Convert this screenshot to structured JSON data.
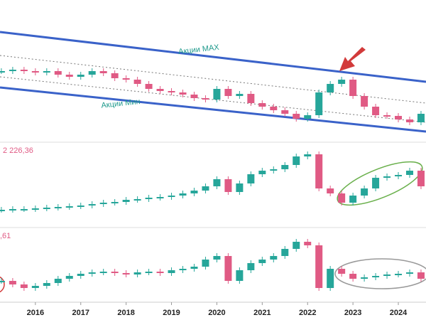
{
  "chart_data": [
    {
      "type": "candlestick",
      "annotations": [
        "Акции MAX",
        "Акции Мин"
      ],
      "x": [
        2015.25,
        2015.5,
        2015.75,
        2016,
        2016.25,
        2016.5,
        2016.75,
        2017,
        2017.25,
        2017.5,
        2017.75,
        2018,
        2018.25,
        2018.5,
        2018.75,
        2019,
        2019.25,
        2019.5,
        2019.75,
        2020,
        2020.25,
        2020.5,
        2020.75,
        2021,
        2021.25,
        2021.5,
        2021.75,
        2022,
        2022.25,
        2022.5,
        2022.75,
        2023,
        2023.25,
        2023.5,
        2023.75,
        2024,
        2024.25,
        2024.5
      ],
      "values": [
        100,
        102,
        100,
        98,
        100,
        95,
        92,
        95,
        100,
        97,
        90,
        88,
        82,
        75,
        72,
        70,
        67,
        62,
        60,
        75,
        65,
        68,
        55,
        50,
        45,
        40,
        33,
        38,
        70,
        82,
        88,
        65,
        50,
        38,
        37,
        32,
        28,
        40
      ],
      "ylim": [
        0,
        200
      ],
      "xlim": [
        2015.22,
        2024.61
      ],
      "up_color": "#26a69a",
      "down_color": "#e05a84"
    },
    {
      "type": "candlestick",
      "value_label": "2 226,36",
      "x": [
        2015.25,
        2015.5,
        2015.75,
        2016,
        2016.25,
        2016.5,
        2016.75,
        2017,
        2017.25,
        2017.5,
        2017.75,
        2018,
        2018.25,
        2018.5,
        2018.75,
        2019,
        2019.25,
        2019.5,
        2019.75,
        2020,
        2020.25,
        2020.5,
        2020.75,
        2021,
        2021.25,
        2021.5,
        2021.75,
        2022,
        2022.25,
        2022.5,
        2022.75,
        2023,
        2023.25,
        2023.5,
        2023.75,
        2024,
        2024.25,
        2024.5
      ],
      "values": [
        25,
        26,
        26,
        27,
        28,
        29,
        30,
        31,
        33,
        35,
        36,
        39,
        40,
        42,
        43,
        45,
        48,
        52,
        58,
        68,
        50,
        62,
        75,
        80,
        82,
        88,
        100,
        103,
        55,
        48,
        35,
        45,
        55,
        70,
        72,
        74,
        80,
        58
      ],
      "ylim": [
        0,
        120
      ],
      "xlim": [
        2015.22,
        2024.61
      ],
      "up_color": "#26a69a",
      "down_color": "#e05a84"
    },
    {
      "type": "candlestick",
      "value_label": ",61",
      "x": [
        2015.25,
        2015.5,
        2015.75,
        2016,
        2016.25,
        2016.5,
        2016.75,
        2017,
        2017.25,
        2017.5,
        2017.75,
        2018,
        2018.25,
        2018.5,
        2018.75,
        2019,
        2019.25,
        2019.5,
        2019.75,
        2020,
        2020.25,
        2020.5,
        2020.75,
        2021,
        2021.25,
        2021.5,
        2021.75,
        2022,
        2022.25,
        2022.5,
        2022.75,
        2023,
        2023.25,
        2023.5,
        2023.75,
        2024,
        2024.25,
        2024.5
      ],
      "values": [
        30,
        25,
        20,
        23,
        27,
        33,
        37,
        40,
        42,
        43,
        41,
        39,
        42,
        43,
        41,
        45,
        47,
        50,
        60,
        65,
        30,
        45,
        55,
        60,
        65,
        75,
        85,
        80,
        20,
        47,
        40,
        33,
        35,
        37,
        39,
        40,
        42,
        33
      ],
      "ylim": [
        0,
        105
      ],
      "xlim": [
        2015.22,
        2024.61
      ],
      "up_color": "#26a69a",
      "down_color": "#e05a84",
      "xticks": [
        2016,
        2017,
        2018,
        2019,
        2020,
        2021,
        2022,
        2023,
        2024
      ]
    }
  ]
}
